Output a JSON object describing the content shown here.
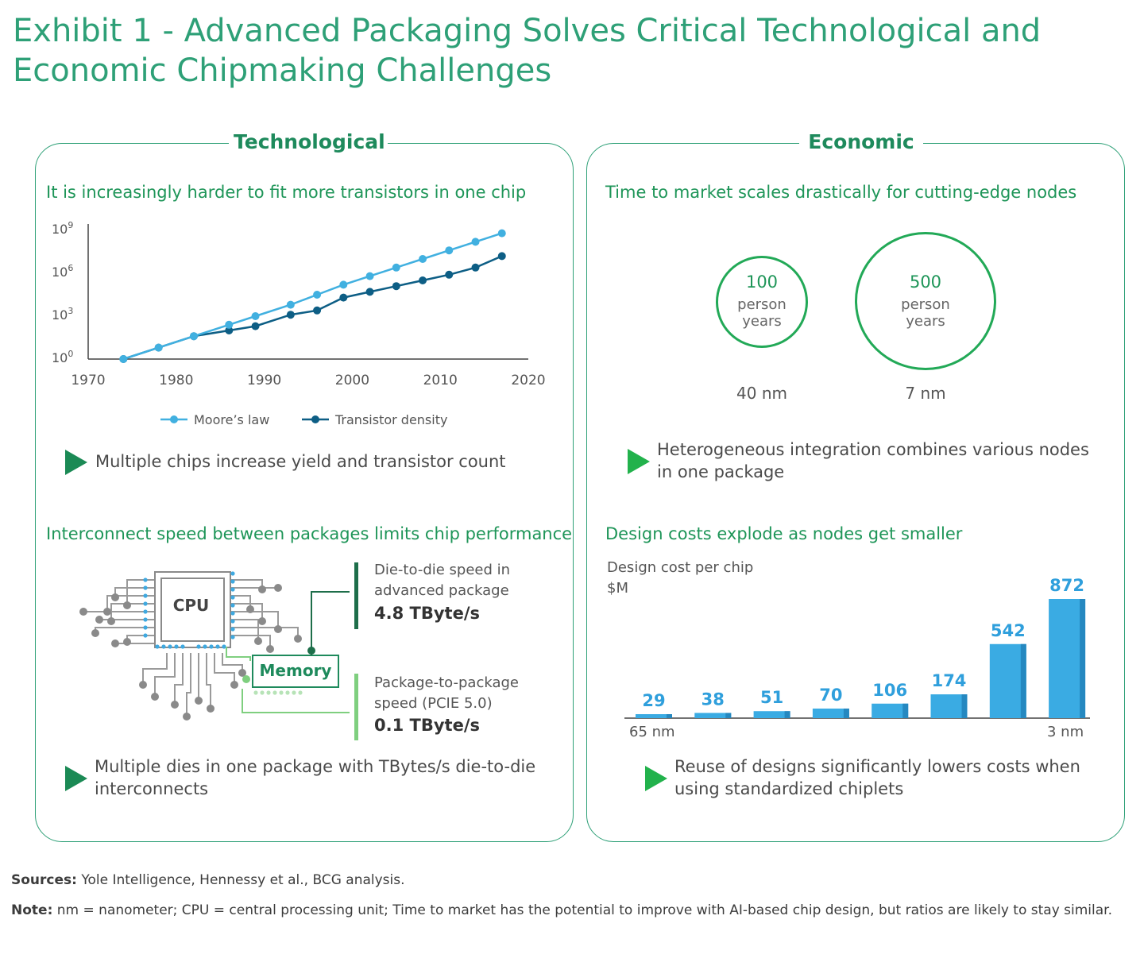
{
  "title": "Exhibit 1 - Advanced Packaging Solves Critical Technological and Economic Chipmaking Challenges",
  "technological": {
    "heading": "Technological",
    "chart_title": "It is increasingly harder to fit more transistors in one chip",
    "point1": "Multiple chips increase yield and transistor count",
    "interconnect_title": "Interconnect speed between packages limits chip performance",
    "cpu_label": "CPU",
    "memory_label": "Memory",
    "die_to_die_label_1": "Die-to-die speed in",
    "die_to_die_label_2": "advanced package",
    "die_to_die_value": "4.8 TByte/s",
    "pkg_label_1": "Package-to-package",
    "pkg_label_2": "speed (PCIE 5.0)",
    "pkg_value": "0.1 TByte/s",
    "point2": "Multiple dies in one package with TBytes/s die-to-die interconnects"
  },
  "economic": {
    "heading": "Economic",
    "ttm_title": "Time to market scales drastically for cutting-edge nodes",
    "circles": [
      {
        "value": "100",
        "unit1": "person",
        "unit2": "years",
        "node": "40 nm"
      },
      {
        "value": "500",
        "unit1": "person",
        "unit2": "years",
        "node": "7 nm"
      }
    ],
    "point1": "Heterogeneous integration combines various nodes in one package",
    "cost_title": "Design costs explode as nodes get smaller",
    "cost_axis_1": "Design cost per chip",
    "cost_axis_2": "$M",
    "x_start": "65 nm",
    "x_end": "3 nm",
    "point2": "Reuse of designs significantly lowers costs when using standardized chiplets"
  },
  "footer": {
    "sources_label": "Sources:",
    "sources_text": " Yole Intelligence, Hennessy et al., BCG analysis.",
    "note_label": "Note:",
    "note_text": " nm = nanometer; CPU = central processing unit; Time to market has the potential to improve with AI-based chip design, but ratios are likely to stay similar."
  },
  "colors": {
    "accent": "#2ea077",
    "moore": "#41b0e0",
    "density": "#0d5e85",
    "bar": "#3aabe3"
  },
  "chart_data": [
    {
      "type": "line",
      "title": "It is increasingly harder to fit more transistors in one chip",
      "xlabel": "",
      "ylabel": "",
      "xlim": [
        1970,
        2020
      ],
      "ylim_log10": [
        0,
        9
      ],
      "x_ticks": [
        "1970",
        "1980",
        "1990",
        "2000",
        "2010",
        "2020"
      ],
      "y_ticks": [
        {
          "base": "10",
          "exp": "0"
        },
        {
          "base": "10",
          "exp": "3"
        },
        {
          "base": "10",
          "exp": "6"
        },
        {
          "base": "10",
          "exp": "9"
        }
      ],
      "series": [
        {
          "name": "Moore’s law",
          "x": [
            1974,
            1978,
            1982,
            1986,
            1989,
            1993,
            1996,
            1999,
            2002,
            2005,
            2008,
            2011,
            2014,
            2017
          ],
          "log10_y": [
            0,
            0.8,
            1.6,
            2.4,
            3.0,
            3.8,
            4.5,
            5.2,
            5.8,
            6.4,
            7.0,
            7.6,
            8.2,
            8.8
          ]
        },
        {
          "name": "Transistor density",
          "x": [
            1974,
            1978,
            1982,
            1986,
            1989,
            1993,
            1996,
            1999,
            2002,
            2005,
            2008,
            2011,
            2014,
            2017
          ],
          "log10_y": [
            0,
            0.8,
            1.6,
            2.0,
            2.3,
            3.1,
            3.4,
            4.3,
            4.7,
            5.1,
            5.5,
            5.9,
            6.4,
            7.2
          ]
        }
      ],
      "legend": "bottom"
    },
    {
      "type": "bar",
      "title": "Design costs explode as nodes get smaller",
      "ylabel": "Design cost per chip $M",
      "categories": [
        "65 nm",
        "",
        "",
        "",
        "",
        "",
        "",
        "3 nm"
      ],
      "values": [
        29,
        38,
        51,
        70,
        106,
        174,
        542,
        872
      ],
      "ylim": [
        0,
        872
      ]
    }
  ]
}
